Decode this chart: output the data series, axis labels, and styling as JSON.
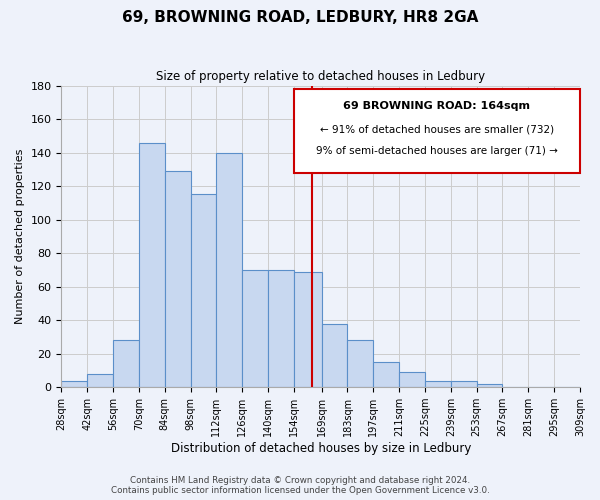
{
  "title": "69, BROWNING ROAD, LEDBURY, HR8 2GA",
  "subtitle": "Size of property relative to detached houses in Ledbury",
  "xlabel": "Distribution of detached houses by size in Ledbury",
  "ylabel": "Number of detached properties",
  "footnote1": "Contains HM Land Registry data © Crown copyright and database right 2024.",
  "footnote2": "Contains public sector information licensed under the Open Government Licence v3.0.",
  "bin_labels": [
    "28sqm",
    "42sqm",
    "56sqm",
    "70sqm",
    "84sqm",
    "98sqm",
    "112sqm",
    "126sqm",
    "140sqm",
    "154sqm",
    "169sqm",
    "183sqm",
    "197sqm",
    "211sqm",
    "225sqm",
    "239sqm",
    "253sqm",
    "267sqm",
    "281sqm",
    "295sqm",
    "309sqm"
  ],
  "bin_edges": [
    28,
    42,
    56,
    70,
    84,
    98,
    112,
    126,
    140,
    154,
    169,
    183,
    197,
    211,
    225,
    239,
    253,
    267,
    281,
    295,
    309
  ],
  "bar_heights": [
    4,
    8,
    28,
    146,
    129,
    115,
    140,
    70,
    70,
    69,
    38,
    28,
    15,
    9,
    4,
    4,
    2,
    0,
    0,
    0
  ],
  "bar_color": "#c8d8f0",
  "bar_edge_color": "#5b8fc9",
  "property_line_x": 164,
  "annotation_title": "69 BROWNING ROAD: 164sqm",
  "annotation_line1": "← 91% of detached houses are smaller (732)",
  "annotation_line2": "9% of semi-detached houses are larger (71) →",
  "annotation_box_color": "#ffffff",
  "annotation_box_edge": "#cc0000",
  "property_line_color": "#cc0000",
  "ylim": [
    0,
    180
  ],
  "yticks": [
    0,
    20,
    40,
    60,
    80,
    100,
    120,
    140,
    160,
    180
  ],
  "grid_color": "#cccccc",
  "bg_color": "#eef2fa"
}
